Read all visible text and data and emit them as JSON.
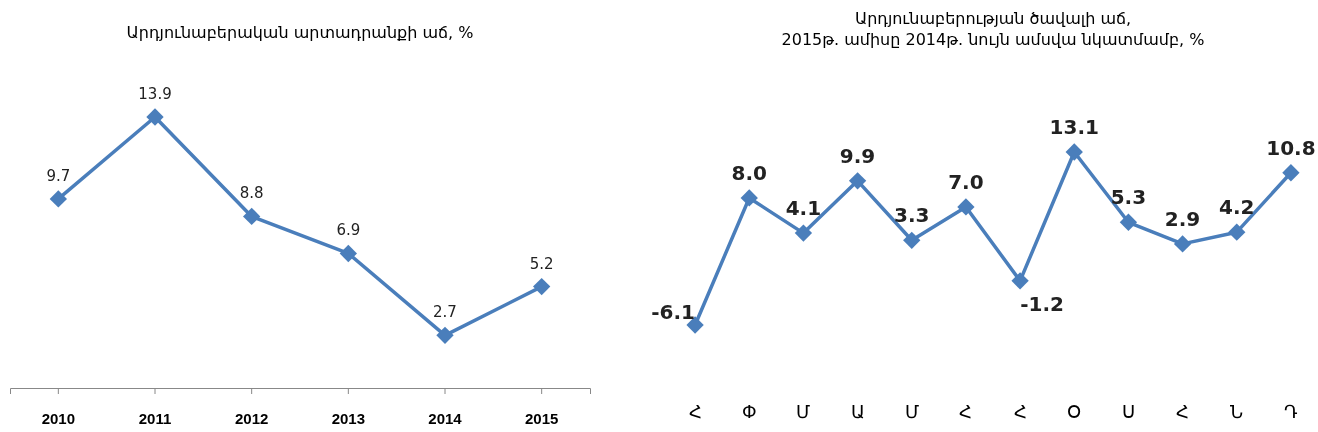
{
  "chart_data": [
    {
      "type": "line",
      "title": "Արդյունաբերական արտադրանքի աճ, %",
      "categories": [
        "2010",
        "2011",
        "2012",
        "2013",
        "2014",
        "2015"
      ],
      "values": [
        9.7,
        13.9,
        8.8,
        6.9,
        2.7,
        5.2
      ],
      "value_labels": [
        "9.7",
        "13.9",
        "8.8",
        "6.9",
        "2.7",
        "5.2"
      ],
      "color": "#4a7ebb",
      "marker": "diamond"
    },
    {
      "type": "line",
      "title": "Արդյունաբերության ծավալի աճ,\n2015թ. ամիսը 2014թ. նույն ամսվա նկատմամբ, %",
      "categories": [
        "Հ",
        "Փ",
        "Մ",
        "Ա",
        "Մ",
        "Հ",
        "Հ",
        "Օ",
        "Ս",
        "Հ",
        "Ն",
        "Դ"
      ],
      "values": [
        -6.1,
        8.0,
        4.1,
        9.9,
        3.3,
        7.0,
        -1.2,
        13.1,
        5.3,
        2.9,
        4.2,
        10.8
      ],
      "value_labels": [
        "-6.1",
        "8.0",
        "4.1",
        "9.9",
        "3.3",
        "7.0",
        "-1.2",
        "13.1",
        "5.3",
        "2.9",
        "4.2",
        "10.8"
      ],
      "color": "#4a7ebb",
      "marker": "diamond"
    }
  ]
}
